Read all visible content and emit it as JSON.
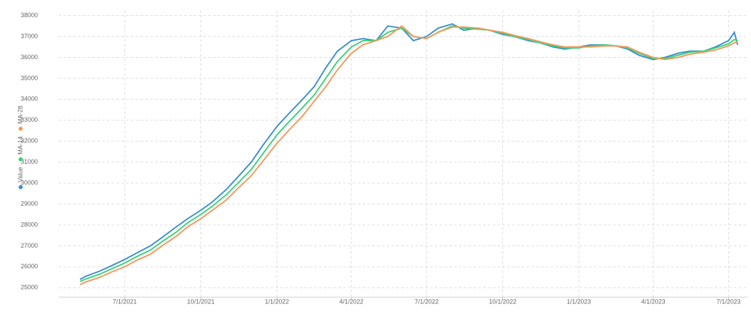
{
  "chart_data": {
    "type": "line",
    "x": [
      "5/8/2021",
      "5/15/2021",
      "6/1/2021",
      "6/15/2021",
      "7/1/2021",
      "7/15/2021",
      "8/1/2021",
      "8/15/2021",
      "9/1/2021",
      "9/15/2021",
      "10/1/2021",
      "10/15/2021",
      "11/1/2021",
      "11/15/2021",
      "12/1/2021",
      "12/15/2021",
      "1/1/2022",
      "1/15/2022",
      "2/1/2022",
      "2/15/2022",
      "3/1/2022",
      "3/15/2022",
      "4/1/2022",
      "4/15/2022",
      "5/1/2022",
      "5/15/2022",
      "6/1/2022",
      "6/15/2022",
      "7/1/2022",
      "7/15/2022",
      "8/1/2022",
      "8/15/2022",
      "9/1/2022",
      "9/15/2022",
      "10/1/2022",
      "10/15/2022",
      "11/1/2022",
      "11/15/2022",
      "12/1/2022",
      "12/15/2022",
      "1/1/2023",
      "1/15/2023",
      "2/1/2023",
      "2/15/2023",
      "3/1/2023",
      "3/15/2023",
      "4/1/2023",
      "4/15/2023",
      "5/1/2023",
      "5/15/2023",
      "6/1/2023",
      "6/15/2023",
      "7/1/2023",
      "7/8/2023",
      "7/12/2023"
    ],
    "series": [
      {
        "name": "Value",
        "color": "#3a8fd0",
        "values": [
          25400,
          25550,
          25800,
          26050,
          26350,
          26650,
          27000,
          27400,
          27900,
          28300,
          28700,
          29100,
          29700,
          30300,
          31000,
          31800,
          32700,
          33300,
          34000,
          34600,
          35500,
          36300,
          36800,
          36900,
          36800,
          37500,
          37400,
          36800,
          37000,
          37400,
          37600,
          37300,
          37400,
          37300,
          37100,
          37000,
          36800,
          36700,
          36500,
          36400,
          36500,
          36600,
          36600,
          36550,
          36400,
          36100,
          35900,
          36000,
          36200,
          36300,
          36300,
          36500,
          36800,
          37200,
          36600
        ]
      },
      {
        "name": "MA-14",
        "color": "#3cd07a",
        "values": [
          25300,
          25420,
          25650,
          25900,
          26180,
          26480,
          26800,
          27200,
          27650,
          28100,
          28500,
          28900,
          29450,
          30000,
          30650,
          31400,
          32300,
          32900,
          33600,
          34200,
          35000,
          35800,
          36500,
          36800,
          36800,
          37200,
          37400,
          37000,
          36900,
          37200,
          37500,
          37400,
          37350,
          37300,
          37150,
          37000,
          36850,
          36700,
          36550,
          36450,
          36450,
          36550,
          36600,
          36550,
          36450,
          36200,
          35950,
          35950,
          36100,
          36250,
          36300,
          36450,
          36650,
          36850,
          36800
        ]
      },
      {
        "name": "MA-28",
        "color": "#f09a5a",
        "values": [
          25150,
          25280,
          25500,
          25750,
          26000,
          26300,
          26600,
          27000,
          27450,
          27900,
          28300,
          28700,
          29200,
          29750,
          30350,
          31050,
          31900,
          32500,
          33200,
          33900,
          34600,
          35400,
          36200,
          36600,
          36800,
          37000,
          37500,
          37000,
          36900,
          37200,
          37450,
          37450,
          37400,
          37300,
          37200,
          37050,
          36900,
          36750,
          36600,
          36500,
          36500,
          36500,
          36550,
          36550,
          36500,
          36250,
          36000,
          35900,
          36000,
          36150,
          36250,
          36350,
          36550,
          36700,
          36750
        ]
      }
    ],
    "xlim": [
      "4/12/2021",
      "7/24/2023"
    ],
    "xticks": [
      "7/1/2021",
      "10/1/2021",
      "1/1/2022",
      "4/1/2022",
      "7/1/2022",
      "10/1/2022",
      "1/1/2023",
      "4/1/2023",
      "7/1/2023"
    ],
    "ylim": [
      24550,
      38250
    ],
    "yticks": [
      25000,
      26000,
      27000,
      28000,
      29000,
      30000,
      31000,
      32000,
      33000,
      34000,
      35000,
      36000,
      37000,
      38000
    ],
    "grid": true,
    "legend_position": "left"
  }
}
